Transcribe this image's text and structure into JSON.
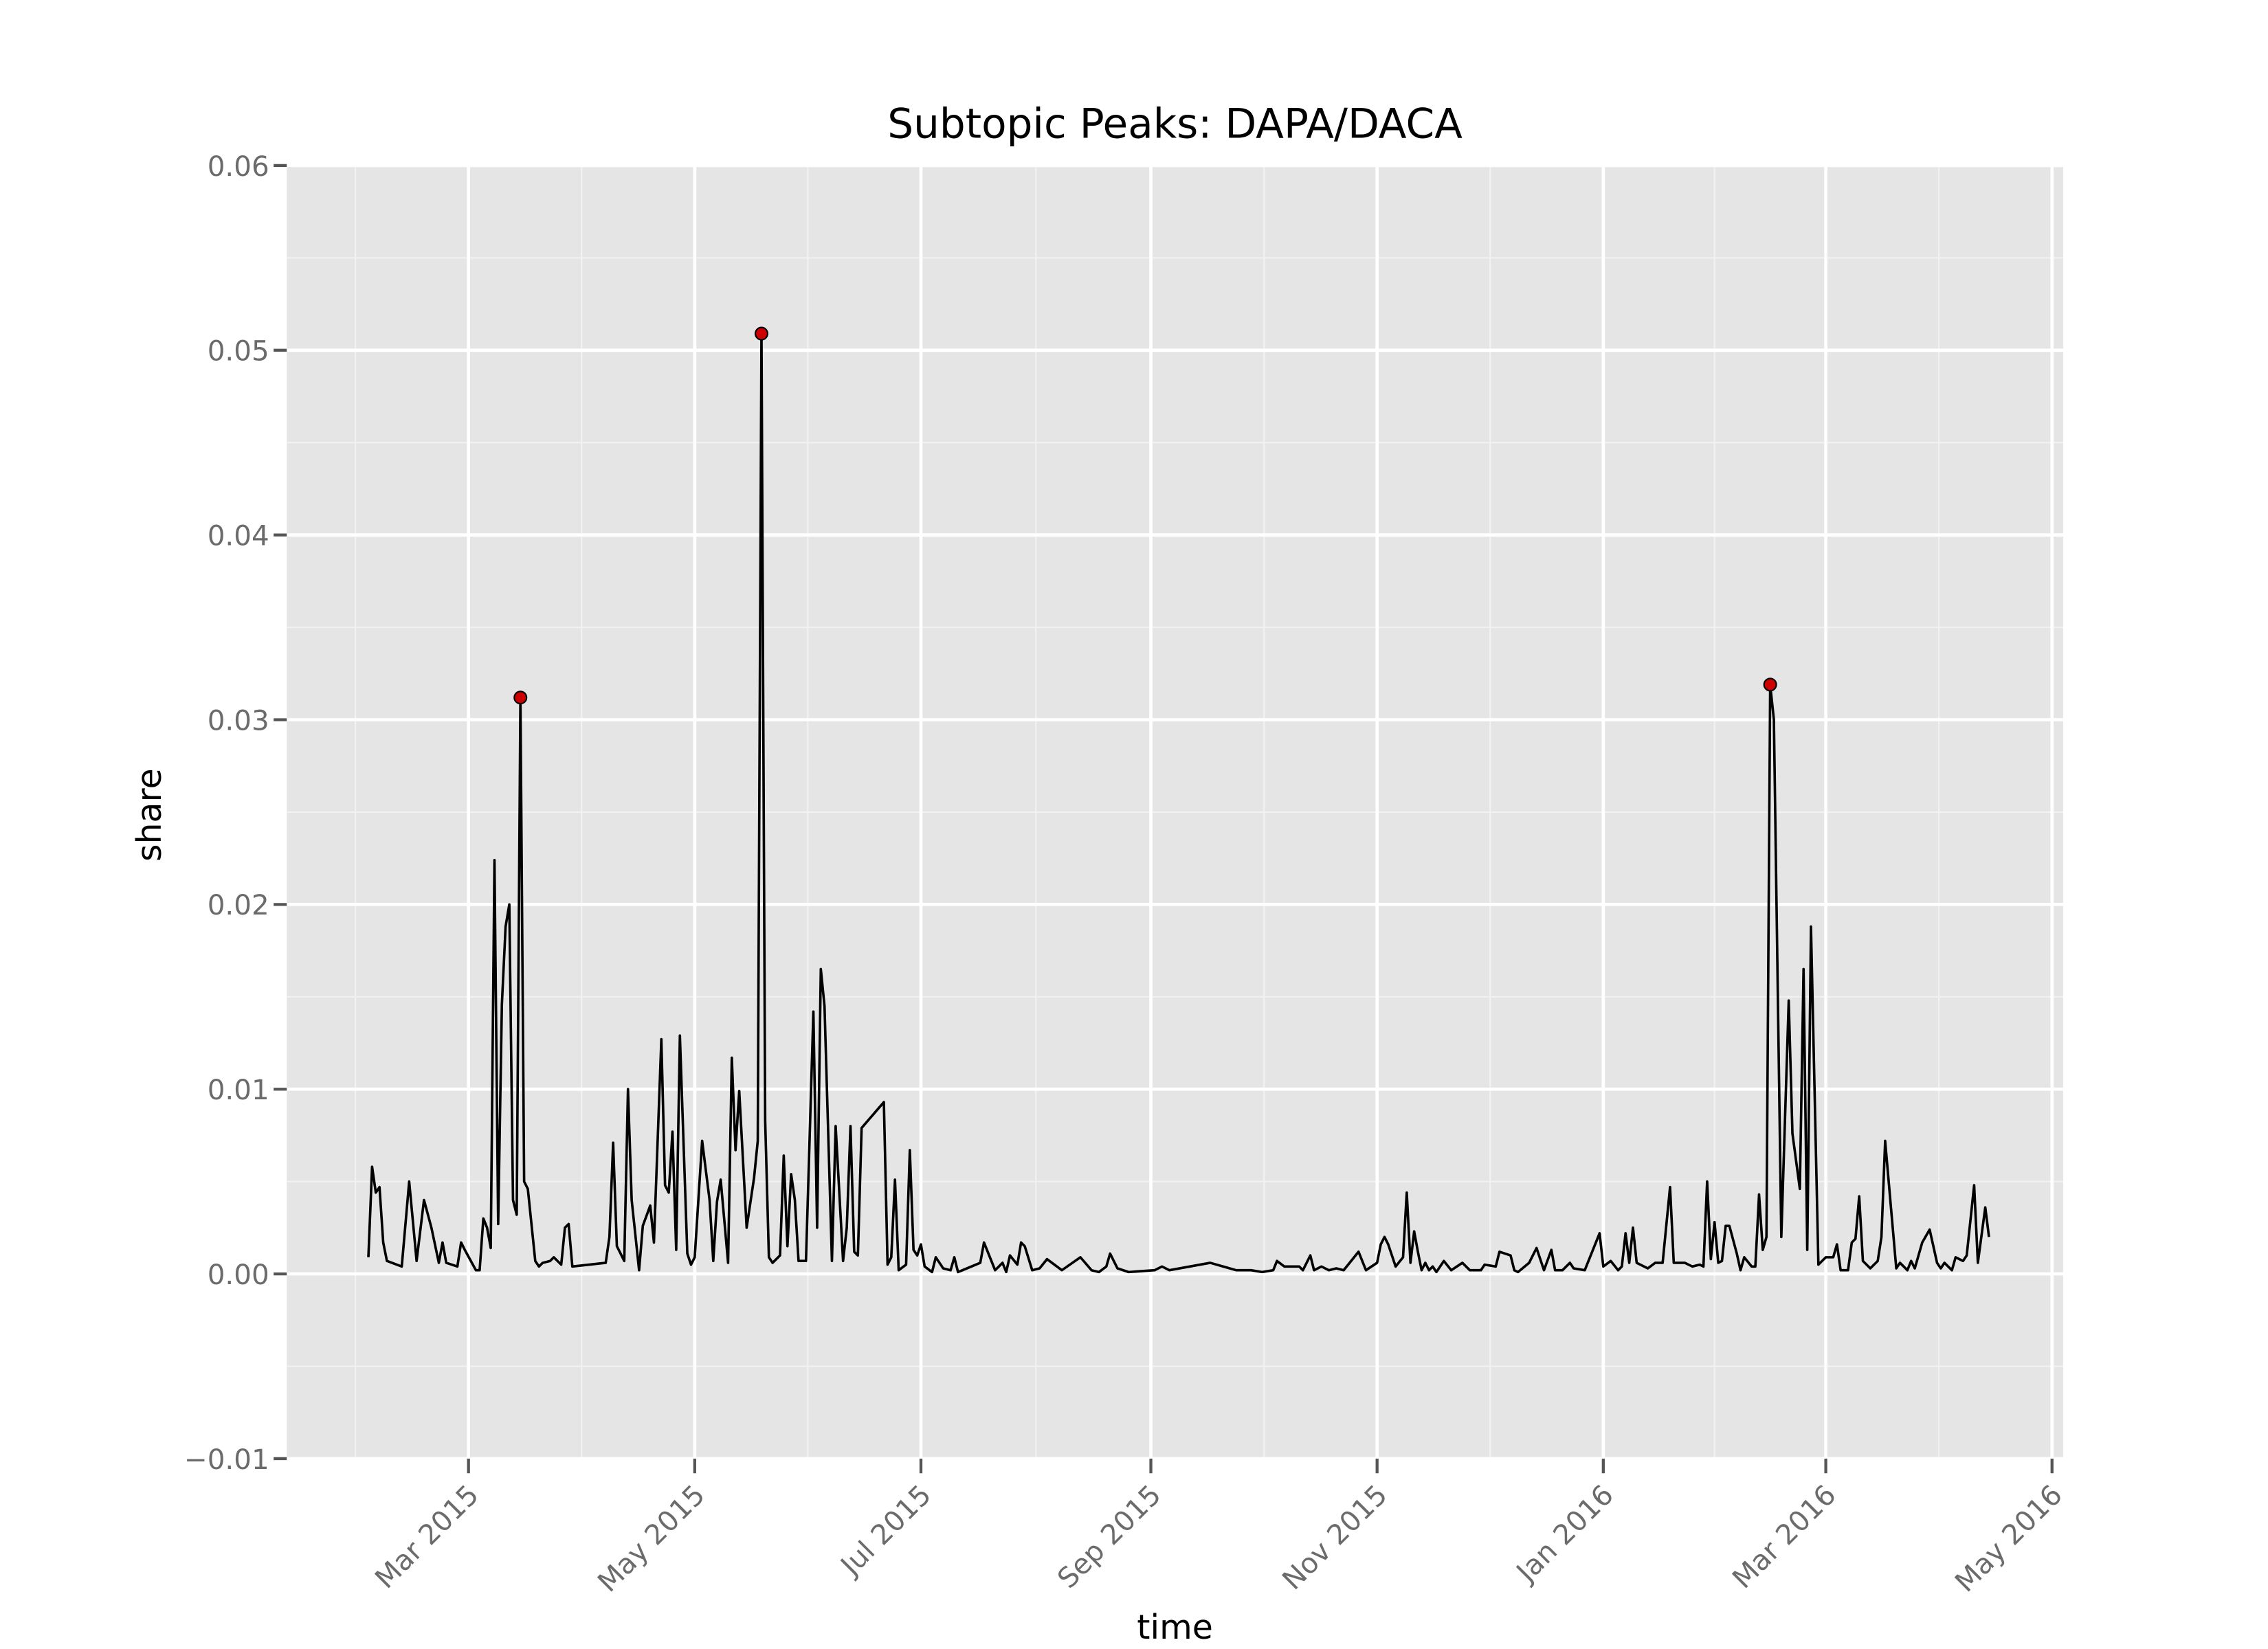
{
  "chart_data": {
    "type": "line",
    "title": "Subtopic Peaks: DAPA/DACA",
    "x_label": "time",
    "y_label": "share",
    "grid": true,
    "xlim": [
      "2015-01-11",
      "2016-05-04"
    ],
    "ylim": [
      -0.01,
      0.06
    ],
    "xticks": [
      {
        "value": "2015-03-01",
        "label": "Mar 2015"
      },
      {
        "value": "2015-05-01",
        "label": "May 2015"
      },
      {
        "value": "2015-07-01",
        "label": "Jul 2015"
      },
      {
        "value": "2015-09-01",
        "label": "Sep 2015"
      },
      {
        "value": "2015-11-01",
        "label": "Nov 2015"
      },
      {
        "value": "2016-01-01",
        "label": "Jan 2016"
      },
      {
        "value": "2016-03-01",
        "label": "Mar 2016"
      },
      {
        "value": "2016-05-01",
        "label": "May 2016"
      }
    ],
    "yticks": [
      {
        "value": -0.01,
        "label": "−0.01"
      },
      {
        "value": 0,
        "label": "0.00"
      },
      0.01,
      0.02,
      0.03,
      0.04,
      0.05,
      0.06
    ],
    "series": [
      {
        "style": "line",
        "color": "#000000",
        "x": [
          "2015-02-02",
          "2015-02-03",
          "2015-02-04",
          "2015-02-05",
          "2015-02-06",
          "2015-02-07",
          "2015-02-11",
          "2015-02-13",
          "2015-02-15",
          "2015-02-17",
          "2015-02-19",
          "2015-02-21",
          "2015-02-22",
          "2015-02-23",
          "2015-02-26",
          "2015-02-27",
          "2015-02-28",
          "2015-03-03",
          "2015-03-04",
          "2015-03-05",
          "2015-03-06",
          "2015-03-07",
          "2015-03-08",
          "2015-03-09",
          "2015-03-10",
          "2015-03-11",
          "2015-03-12",
          "2015-03-13",
          "2015-03-14",
          "2015-03-15",
          "2015-03-16",
          "2015-03-17",
          "2015-03-19",
          "2015-03-20",
          "2015-03-21",
          "2015-03-23",
          "2015-03-24",
          "2015-03-26",
          "2015-03-27",
          "2015-03-28",
          "2015-03-29",
          "2015-04-07",
          "2015-04-08",
          "2015-04-09",
          "2015-04-10",
          "2015-04-12",
          "2015-04-13",
          "2015-04-14",
          "2015-04-16",
          "2015-04-17",
          "2015-04-19",
          "2015-04-20",
          "2015-04-22",
          "2015-04-23",
          "2015-04-24",
          "2015-04-25",
          "2015-04-26",
          "2015-04-27",
          "2015-04-29",
          "2015-04-30",
          "2015-05-01",
          "2015-05-03",
          "2015-05-05",
          "2015-05-06",
          "2015-05-07",
          "2015-05-08",
          "2015-05-10",
          "2015-05-11",
          "2015-05-12",
          "2015-05-13",
          "2015-05-15",
          "2015-05-17",
          "2015-05-18",
          "2015-05-19",
          "2015-05-20",
          "2015-05-21",
          "2015-05-22",
          "2015-05-24",
          "2015-05-25",
          "2015-05-26",
          "2015-05-27",
          "2015-05-28",
          "2015-05-29",
          "2015-05-31",
          "2015-06-02",
          "2015-06-03",
          "2015-06-04",
          "2015-06-05",
          "2015-06-07",
          "2015-06-08",
          "2015-06-10",
          "2015-06-11",
          "2015-06-12",
          "2015-06-13",
          "2015-06-14",
          "2015-06-15",
          "2015-06-21",
          "2015-06-22",
          "2015-06-23",
          "2015-06-24",
          "2015-06-25",
          "2015-06-27",
          "2015-06-28",
          "2015-06-29",
          "2015-06-30",
          "2015-07-01",
          "2015-07-02",
          "2015-07-04",
          "2015-07-05",
          "2015-07-07",
          "2015-07-09",
          "2015-07-10",
          "2015-07-11",
          "2015-07-17",
          "2015-07-18",
          "2015-07-19",
          "2015-07-21",
          "2015-07-23",
          "2015-07-24",
          "2015-07-25",
          "2015-07-27",
          "2015-07-28",
          "2015-07-29",
          "2015-07-31",
          "2015-08-02",
          "2015-08-04",
          "2015-08-06",
          "2015-08-08",
          "2015-08-13",
          "2015-08-16",
          "2015-08-18",
          "2015-08-20",
          "2015-08-21",
          "2015-08-23",
          "2015-08-26",
          "2015-09-02",
          "2015-09-04",
          "2015-09-06",
          "2015-09-17",
          "2015-09-24",
          "2015-09-28",
          "2015-10-01",
          "2015-10-04",
          "2015-10-05",
          "2015-10-07",
          "2015-10-11",
          "2015-10-12",
          "2015-10-14",
          "2015-10-15",
          "2015-10-17",
          "2015-10-19",
          "2015-10-21",
          "2015-10-23",
          "2015-10-27",
          "2015-10-29",
          "2015-11-01",
          "2015-11-02",
          "2015-11-03",
          "2015-11-04",
          "2015-11-06",
          "2015-11-08",
          "2015-11-09",
          "2015-11-10",
          "2015-11-11",
          "2015-11-12",
          "2015-11-13",
          "2015-11-14",
          "2015-11-15",
          "2015-11-16",
          "2015-11-17",
          "2015-11-19",
          "2015-11-21",
          "2015-11-24",
          "2015-11-26",
          "2015-11-29",
          "2015-11-30",
          "2015-12-03",
          "2015-12-04",
          "2015-12-07",
          "2015-12-08",
          "2015-12-09",
          "2015-12-12",
          "2015-12-14",
          "2015-12-16",
          "2015-12-18",
          "2015-12-19",
          "2015-12-21",
          "2015-12-23",
          "2015-12-24",
          "2015-12-27",
          "2015-12-31",
          "2016-01-01",
          "2016-01-03",
          "2016-01-05",
          "2016-01-06",
          "2016-01-07",
          "2016-01-08",
          "2016-01-09",
          "2016-01-10",
          "2016-01-13",
          "2016-01-15",
          "2016-01-17",
          "2016-01-19",
          "2016-01-20",
          "2016-01-23",
          "2016-01-25",
          "2016-01-27",
          "2016-01-28",
          "2016-01-29",
          "2016-01-30",
          "2016-01-31",
          "2016-02-01",
          "2016-02-02",
          "2016-02-03",
          "2016-02-04",
          "2016-02-06",
          "2016-02-07",
          "2016-02-08",
          "2016-02-10",
          "2016-02-11",
          "2016-02-12",
          "2016-02-13",
          "2016-02-14",
          "2016-02-15",
          "2016-02-16",
          "2016-02-18",
          "2016-02-20",
          "2016-02-21",
          "2016-02-23",
          "2016-02-24",
          "2016-02-25",
          "2016-02-26",
          "2016-02-28",
          "2016-03-01",
          "2016-03-03",
          "2016-03-04",
          "2016-03-05",
          "2016-03-07",
          "2016-03-08",
          "2016-03-09",
          "2016-03-10",
          "2016-03-11",
          "2016-03-13",
          "2016-03-15",
          "2016-03-16",
          "2016-03-17",
          "2016-03-20",
          "2016-03-21",
          "2016-03-23",
          "2016-03-24",
          "2016-03-25",
          "2016-03-27",
          "2016-03-29",
          "2016-03-31",
          "2016-04-01",
          "2016-04-02",
          "2016-04-04",
          "2016-04-05",
          "2016-04-07",
          "2016-04-08",
          "2016-04-10",
          "2016-04-11",
          "2016-04-13",
          "2016-04-14"
        ],
        "values": [
          0.0009,
          0.0058,
          0.0044,
          0.0047,
          0.0017,
          0.0007,
          0.0004,
          0.005,
          0.0007,
          0.004,
          0.0025,
          0.0006,
          0.0017,
          0.0006,
          0.0004,
          0.0017,
          0.0013,
          0.0002,
          0.0002,
          0.003,
          0.0025,
          0.0014,
          0.0224,
          0.0027,
          0.0146,
          0.0188,
          0.02,
          0.004,
          0.0032,
          0.0312,
          0.005,
          0.0046,
          0.0007,
          0.0004,
          0.0006,
          0.0007,
          0.0009,
          0.0005,
          0.0025,
          0.0027,
          0.0004,
          0.0006,
          0.002,
          0.0071,
          0.0015,
          0.0007,
          0.01,
          0.004,
          0.0002,
          0.0026,
          0.0037,
          0.0017,
          0.0127,
          0.0048,
          0.0044,
          0.0077,
          0.0013,
          0.0129,
          0.0011,
          0.0005,
          0.0009,
          0.0072,
          0.004,
          0.0007,
          0.0039,
          0.0051,
          0.0006,
          0.0117,
          0.0067,
          0.0099,
          0.0025,
          0.0052,
          0.0072,
          0.0509,
          0.0083,
          0.0009,
          0.0006,
          0.001,
          0.0064,
          0.0015,
          0.0054,
          0.004,
          0.0007,
          0.0007,
          0.0142,
          0.0025,
          0.0165,
          0.0145,
          0.0007,
          0.008,
          0.0007,
          0.0025,
          0.008,
          0.0012,
          0.001,
          0.0079,
          0.0093,
          0.0005,
          0.0009,
          0.0051,
          0.0002,
          0.0005,
          0.0067,
          0.0013,
          0.001,
          0.0016,
          0.0004,
          0.0001,
          0.0009,
          0.0003,
          0.0002,
          0.0009,
          0.0001,
          0.0006,
          0.0017,
          0.0012,
          0.0002,
          0.0006,
          0.0001,
          0.001,
          0.0005,
          0.0017,
          0.0015,
          0.0002,
          0.0003,
          0.0008,
          0.0005,
          0.0002,
          0.0009,
          0.0002,
          0.0001,
          0.0004,
          0.0011,
          0.0003,
          0.0001,
          0.0002,
          0.0004,
          0.0002,
          0.0006,
          0.0002,
          0.0002,
          0.0001,
          0.0002,
          0.0007,
          0.0004,
          0.0004,
          0.0002,
          0.001,
          0.0002,
          0.0004,
          0.0002,
          0.0003,
          0.0002,
          0.0012,
          0.0002,
          0.0006,
          0.0016,
          0.002,
          0.0016,
          0.0004,
          0.0009,
          0.0044,
          0.0006,
          0.0023,
          0.0012,
          0.0002,
          0.0006,
          0.0002,
          0.0004,
          0.0001,
          0.0007,
          0.0002,
          0.0006,
          0.0002,
          0.0002,
          0.0005,
          0.0004,
          0.0012,
          0.001,
          0.0002,
          0.0001,
          0.0006,
          0.0014,
          0.0002,
          0.0013,
          0.0002,
          0.0002,
          0.0006,
          0.0003,
          0.0002,
          0.0022,
          0.0004,
          0.0007,
          0.0002,
          0.0004,
          0.0022,
          0.0006,
          0.0025,
          0.0006,
          0.0003,
          0.0006,
          0.0006,
          0.0047,
          0.0006,
          0.0006,
          0.0004,
          0.0005,
          0.0004,
          0.005,
          0.0008,
          0.0028,
          0.0006,
          0.0007,
          0.0026,
          0.0026,
          0.0011,
          0.0002,
          0.0009,
          0.0004,
          0.0004,
          0.0043,
          0.0013,
          0.002,
          0.0319,
          0.03,
          0.002,
          0.0148,
          0.0076,
          0.0046,
          0.0165,
          0.0013,
          0.0188,
          0.0005,
          0.0009,
          0.0009,
          0.0016,
          0.0002,
          0.0002,
          0.0017,
          0.0019,
          0.0042,
          0.0007,
          0.0003,
          0.0007,
          0.002,
          0.0072,
          0.0003,
          0.0006,
          0.0002,
          0.0007,
          0.0003,
          0.0017,
          0.0024,
          0.0006,
          0.0003,
          0.0006,
          0.0002,
          0.0009,
          0.0007,
          0.001,
          0.0048,
          0.0006,
          0.0036,
          0.002
        ]
      },
      {
        "style": "points",
        "color": "#cc0000",
        "x": [
          "2015-03-15",
          "2015-05-19",
          "2016-02-15"
        ],
        "values": [
          0.0312,
          0.0509,
          0.0319
        ]
      }
    ]
  }
}
